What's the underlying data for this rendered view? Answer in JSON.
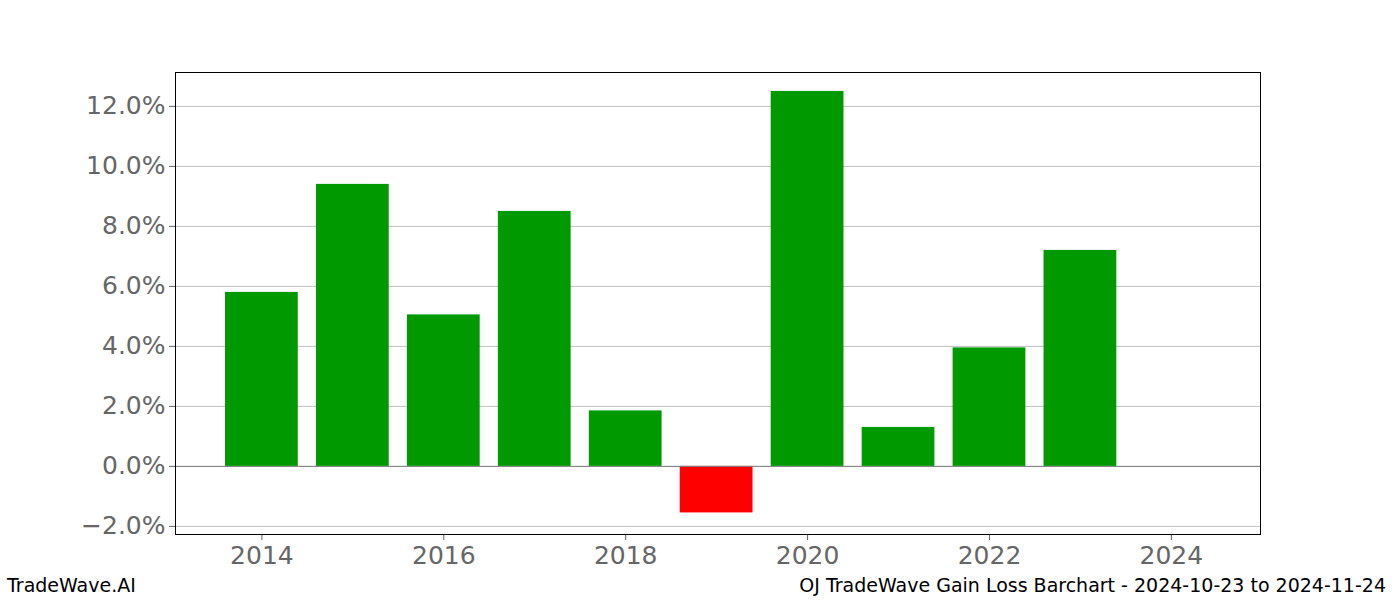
{
  "chart_data": {
    "type": "bar",
    "title": "OJ TradeWave Gain Loss Barchart - 2024-10-23 to 2024-11-24",
    "annotations": [
      "TradeWave.AI"
    ],
    "x": [
      2014,
      2015,
      2016,
      2017,
      2018,
      2019,
      2020,
      2021,
      2022,
      2023
    ],
    "values": [
      5.8,
      9.4,
      5.05,
      8.5,
      1.85,
      -1.55,
      12.5,
      1.3,
      3.95,
      7.2
    ],
    "colors": [
      "#009900",
      "#009900",
      "#009900",
      "#009900",
      "#009900",
      "#ff0000",
      "#009900",
      "#009900",
      "#009900",
      "#009900"
    ],
    "xlim": [
      2013.05,
      2024.98
    ],
    "xticks": [
      2014,
      2016,
      2018,
      2020,
      2022,
      2024
    ],
    "ylim": [
      -2.27,
      13.13
    ],
    "yticks": [
      {
        "value": -2,
        "label": "−2.0%"
      },
      {
        "value": 0,
        "label": "0.0%"
      },
      {
        "value": 2,
        "label": "2.0%"
      },
      {
        "value": 4,
        "label": "4.0%"
      },
      {
        "value": 6,
        "label": "6.0%"
      },
      {
        "value": 8,
        "label": "8.0%"
      },
      {
        "value": 10,
        "label": "10.0%"
      },
      {
        "value": 12,
        "label": "12.0%"
      }
    ],
    "grid": true
  }
}
